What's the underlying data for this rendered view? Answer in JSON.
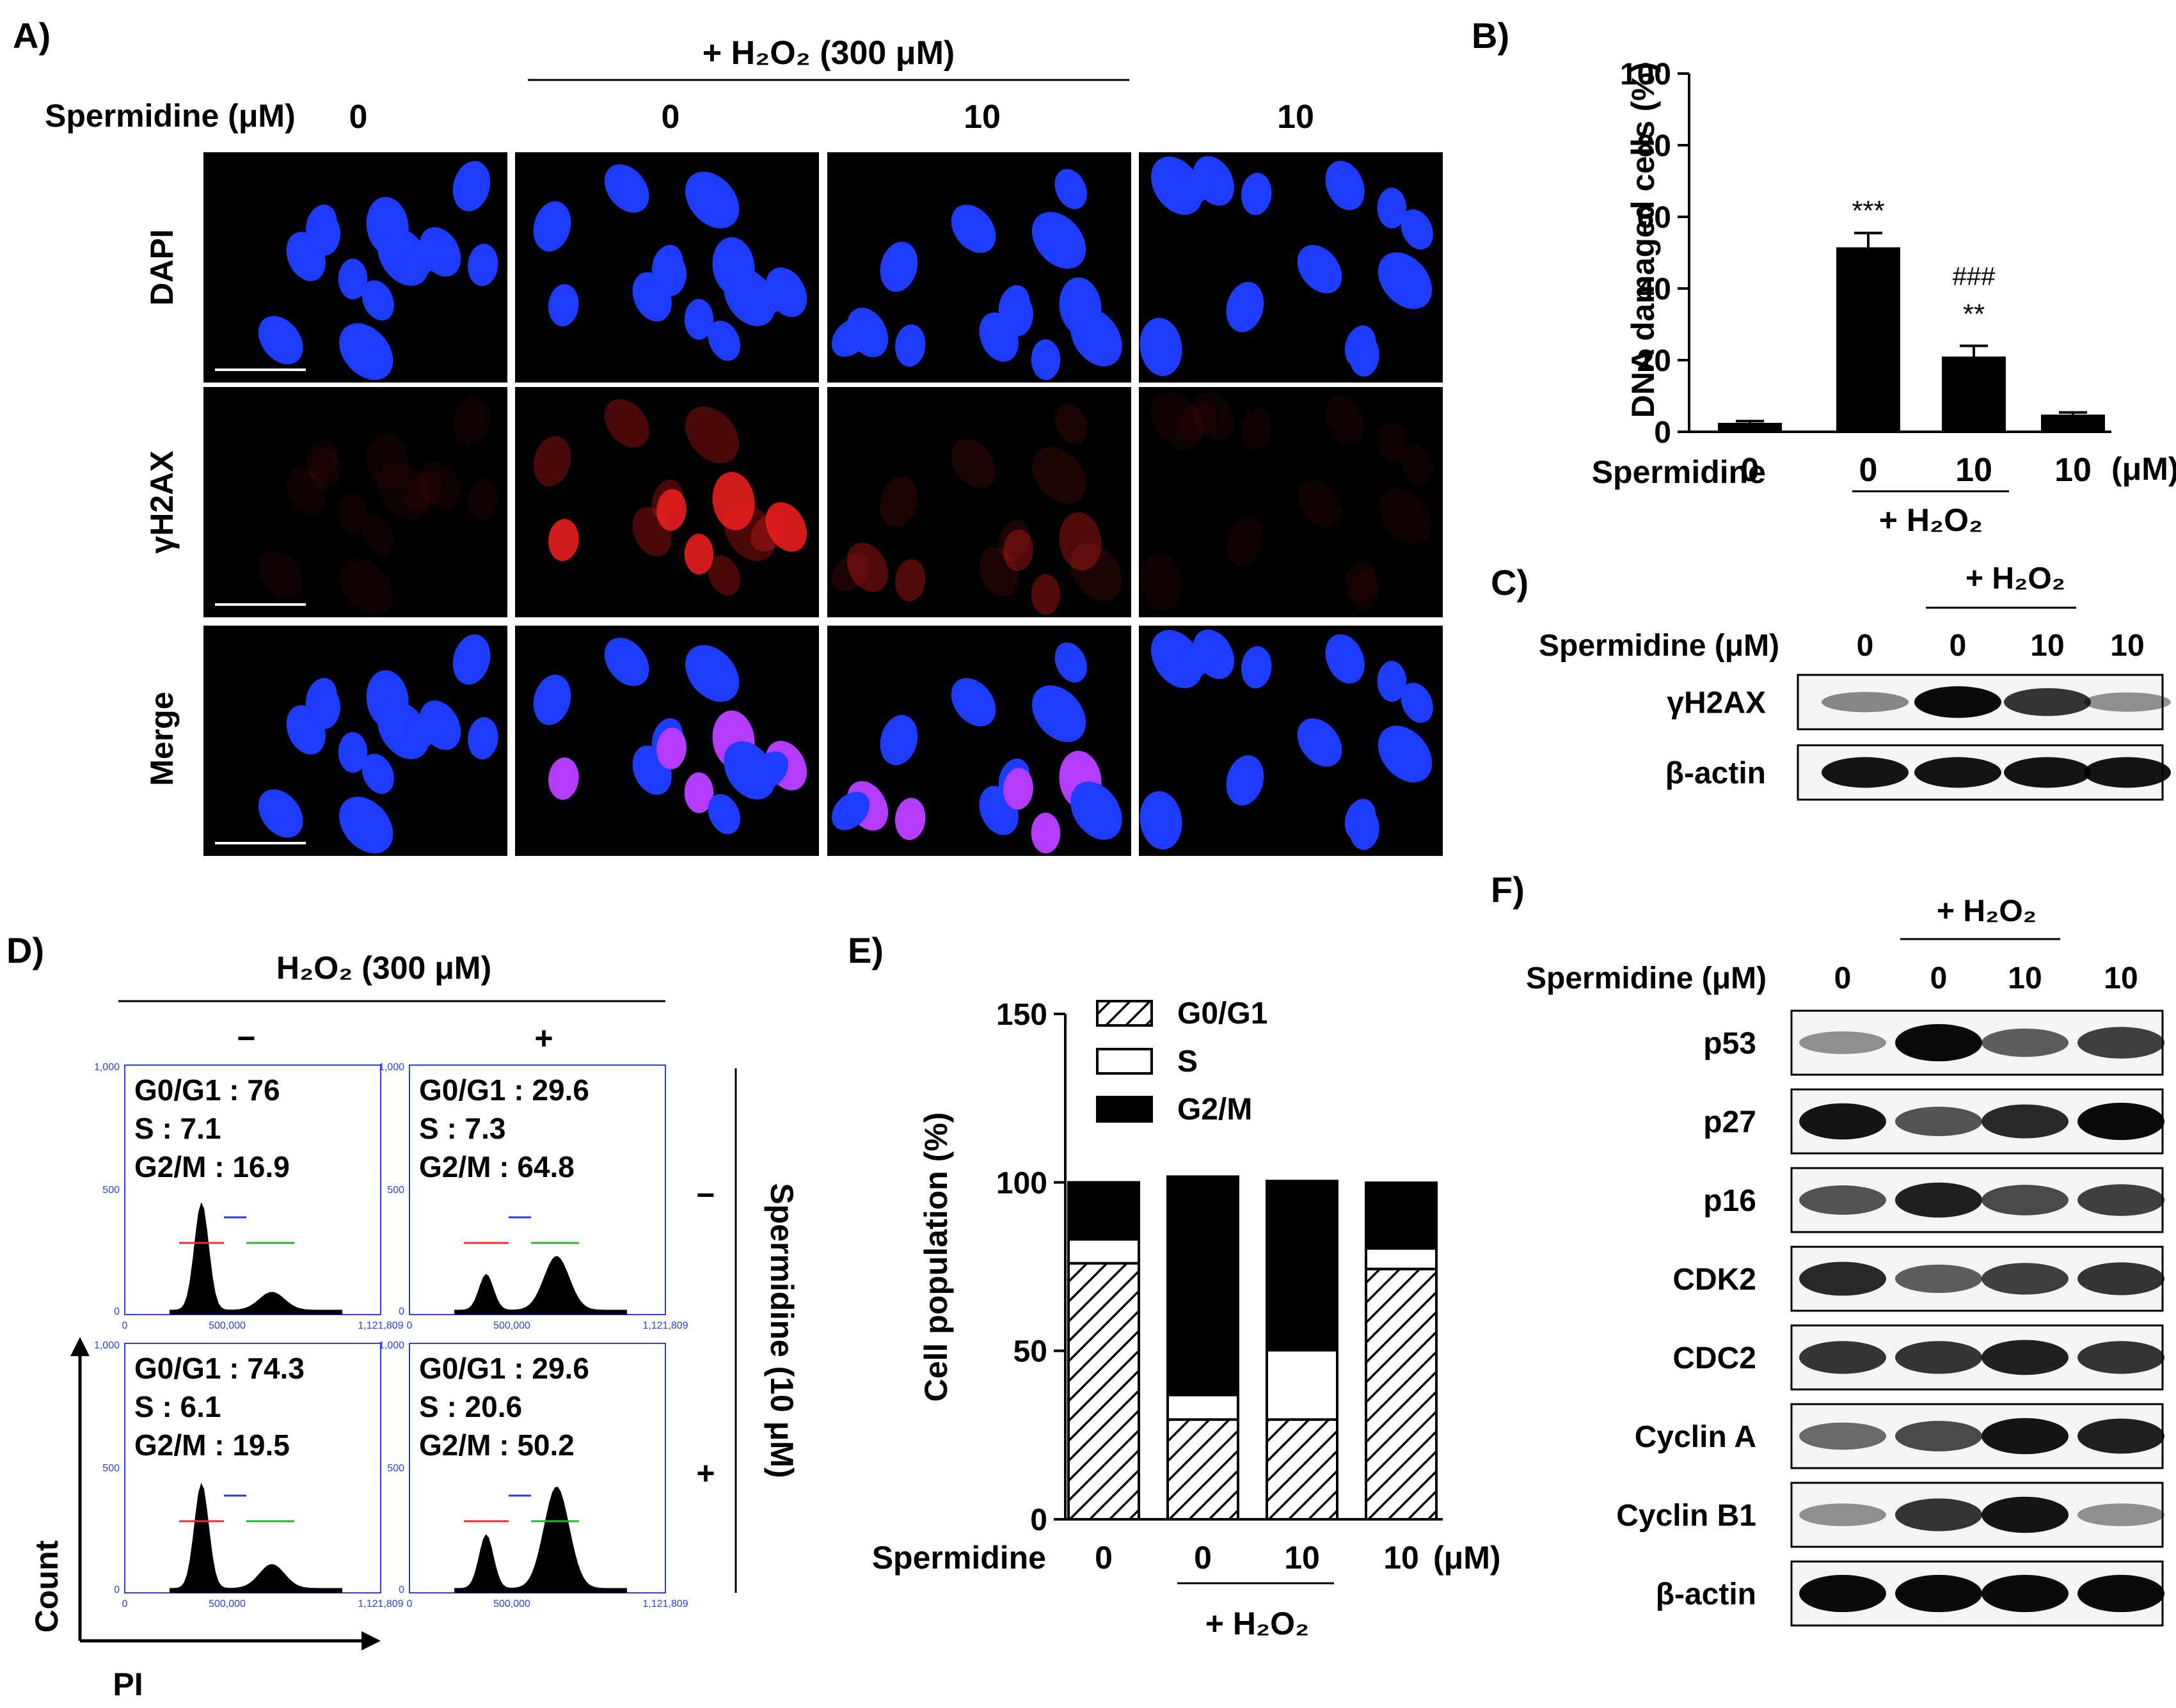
{
  "colors": {
    "nucleus_blue": "#1e3cff",
    "nucleus_red": "#e81e1e",
    "nucleus_magenta": "#b43cff",
    "axis_blue": "#2a40e0",
    "gate_red": "#e83030",
    "gate_blue": "#2a3ae0",
    "gate_green": "#30b030"
  },
  "panelA": {
    "label": "A)",
    "h2o2_header": "+ H₂O₂ (300 μM)",
    "sperm_label": "Spermidine (μM)",
    "cols": [
      "0",
      "0",
      "10",
      "10"
    ],
    "rows": [
      "DAPI",
      "γH2AX",
      "Merge"
    ]
  },
  "panelB": {
    "label": "B)",
    "xlabel_prefix": "Spermidine",
    "unit": "(μM)",
    "h2o2": "+ H₂O₂",
    "chart_data": {
      "type": "bar",
      "ylabel": "DNA damaged cells (%)",
      "ylim": [
        0,
        100
      ],
      "yticks": [
        "0",
        "20",
        "40",
        "60",
        "80",
        "100"
      ],
      "categories": [
        "0",
        "0",
        "10",
        "10"
      ],
      "values": [
        2.5,
        51.5,
        21,
        4.8
      ],
      "errors": [
        0.5,
        4,
        3,
        0.6
      ],
      "annotations": [
        {
          "bar": 1,
          "text": "***"
        },
        {
          "bar": 2,
          "text": "**"
        },
        {
          "bar": 2,
          "text": "###"
        }
      ]
    }
  },
  "panelC": {
    "label": "C)",
    "h2o2": "+ H₂O₂",
    "sperm_label": "Spermidine (μM)",
    "cols": [
      "0",
      "0",
      "10",
      "10"
    ],
    "rows": [
      {
        "name": "γH2AX",
        "intensity": [
          0.35,
          0.95,
          0.75,
          0.3
        ]
      },
      {
        "name": "β-actin",
        "intensity": [
          0.9,
          0.9,
          0.9,
          0.9
        ]
      }
    ]
  },
  "panelD": {
    "label": "D)",
    "h2o2_header": "H₂O₂ (300 μM)",
    "col_signs": [
      "−",
      "+"
    ],
    "row_signs": [
      "−",
      "+"
    ],
    "side_label": "Spermidine (10 μM)",
    "y_axis": "Count",
    "x_axis": "PI",
    "axis_ticks": {
      "y": [
        "0",
        "500",
        "1,000"
      ],
      "x": [
        "0",
        "500,000",
        "1,121,809"
      ]
    },
    "histograms": [
      {
        "g1": "G0/G1 : 76",
        "s": "S : 7.1",
        "g2": "G2/M : 16.9",
        "peaks": [
          0.9,
          0.15
        ]
      },
      {
        "g1": "G0/G1 : 29.6",
        "s": "S : 7.3",
        "g2": "G2/M : 64.8",
        "peaks": [
          0.3,
          0.45
        ]
      },
      {
        "g1": "G0/G1 : 74.3",
        "s": "S : 6.1",
        "g2": "G2/M : 19.5",
        "peaks": [
          0.88,
          0.2
        ]
      },
      {
        "g1": "G0/G1 : 29.6",
        "s": "S : 20.6",
        "g2": "G2/M : 50.2",
        "peaks": [
          0.45,
          0.85
        ]
      }
    ]
  },
  "panelE": {
    "label": "E)",
    "xlabel_prefix": "Spermidine",
    "unit": "(μM)",
    "h2o2": "+ H₂O₂",
    "chart_data": {
      "type": "bar",
      "ylabel": "Cell population (%)",
      "ylim": [
        0,
        150
      ],
      "yticks": [
        "0",
        "50",
        "100",
        "150"
      ],
      "categories": [
        "0",
        "0",
        "10",
        "10"
      ],
      "series": [
        {
          "name": "G0/G1",
          "values": [
            76,
            29.6,
            29.6,
            74.3
          ]
        },
        {
          "name": "S",
          "values": [
            7.1,
            7.3,
            20.6,
            6.1
          ]
        },
        {
          "name": "G2/M",
          "values": [
            16.9,
            64.8,
            50.2,
            19.5
          ]
        }
      ]
    }
  },
  "panelF": {
    "label": "F)",
    "h2o2": "+ H₂O₂",
    "sperm_label": "Spermidine (μM)",
    "cols": [
      "0",
      "0",
      "10",
      "10"
    ],
    "rows": [
      {
        "name": "p53",
        "intensity": [
          0.3,
          0.95,
          0.55,
          0.7
        ]
      },
      {
        "name": "p27",
        "intensity": [
          0.9,
          0.6,
          0.8,
          0.95
        ]
      },
      {
        "name": "p16",
        "intensity": [
          0.6,
          0.85,
          0.65,
          0.7
        ]
      },
      {
        "name": "CDK2",
        "intensity": [
          0.8,
          0.55,
          0.7,
          0.75
        ]
      },
      {
        "name": "CDC2",
        "intensity": [
          0.75,
          0.75,
          0.85,
          0.75
        ]
      },
      {
        "name": "Cyclin A",
        "intensity": [
          0.5,
          0.65,
          0.9,
          0.85
        ]
      },
      {
        "name": "Cyclin B1",
        "intensity": [
          0.3,
          0.75,
          0.9,
          0.3
        ]
      },
      {
        "name": "β-actin",
        "intensity": [
          0.95,
          0.95,
          0.95,
          0.95
        ]
      }
    ]
  }
}
